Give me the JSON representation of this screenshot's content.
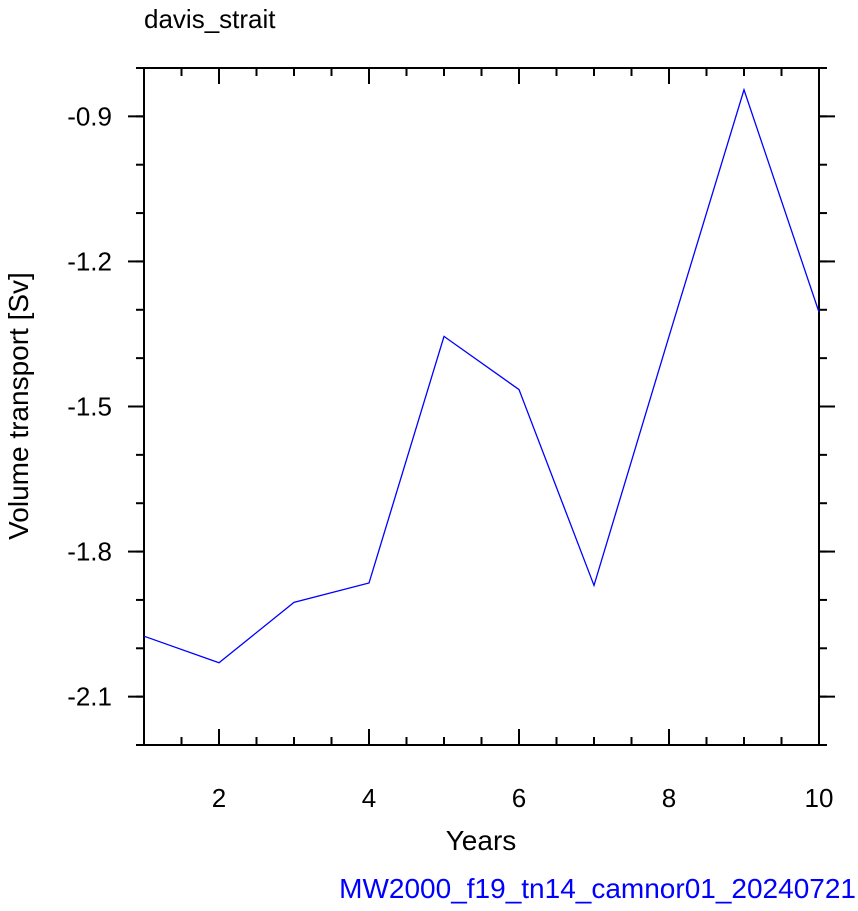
{
  "chart_data": {
    "type": "line",
    "title": "davis_strait",
    "xlabel": "Years",
    "ylabel": "Volume transport [Sv]",
    "footer": "MW2000_f19_tn14_camnor01_20240721",
    "xlim": [
      1,
      10
    ],
    "ylim": [
      -2.2,
      -0.8
    ],
    "xticks": [
      2,
      4,
      6,
      8,
      10
    ],
    "yticks": [
      -0.9,
      -1.2,
      -1.5,
      -1.8,
      -2.1
    ],
    "xtick_labels": [
      "2",
      "4",
      "6",
      "8",
      "10"
    ],
    "ytick_labels": [
      "-0.9",
      "-1.2",
      "-1.5",
      "-1.8",
      "-2.1"
    ],
    "grid": false,
    "series": [
      {
        "color": "#0000ff",
        "x": [
          1,
          2,
          3,
          4,
          5,
          6,
          7,
          8,
          9,
          10
        ],
        "y": [
          -1.975,
          -2.03,
          -1.905,
          -1.865,
          -1.355,
          -1.465,
          -1.87,
          -1.355,
          -0.845,
          -1.305
        ]
      }
    ]
  }
}
